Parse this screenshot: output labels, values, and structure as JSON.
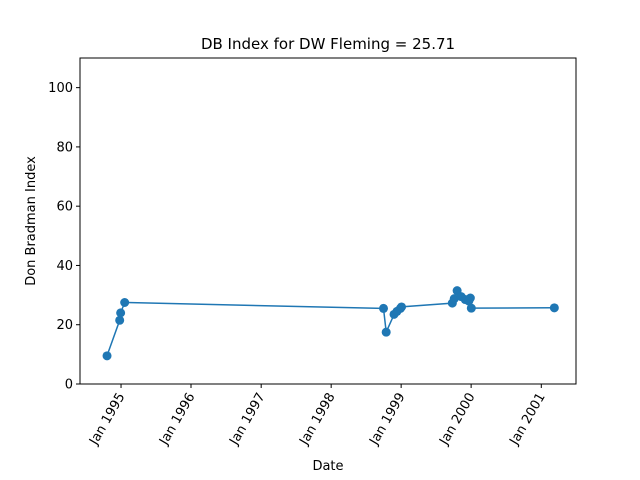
{
  "chart_data": {
    "type": "line",
    "title": "DB Index for DW Fleming = 25.71",
    "xlabel": "Date",
    "ylabel": "Don Bradman Index",
    "ylim": [
      0,
      110
    ],
    "yticks": [
      0,
      20,
      40,
      60,
      80,
      100
    ],
    "xlim": [
      "1994-06-01",
      "2001-07-01"
    ],
    "xticks": [
      {
        "date": "1995-01-01",
        "label": "Jan 1995"
      },
      {
        "date": "1996-01-01",
        "label": "Jan 1996"
      },
      {
        "date": "1997-01-01",
        "label": "Jan 1997"
      },
      {
        "date": "1998-01-01",
        "label": "Jan 1998"
      },
      {
        "date": "1999-01-01",
        "label": "Jan 1999"
      },
      {
        "date": "2000-01-01",
        "label": "Jan 2000"
      },
      {
        "date": "2001-01-01",
        "label": "Jan 2001"
      }
    ],
    "grid": false,
    "series": [
      {
        "color": "#1f77b4",
        "x": [
          "1994-10-20",
          "1994-12-25",
          "1994-12-30",
          "1995-01-20",
          "1998-10-01",
          "1998-10-15",
          "1998-11-25",
          "1998-12-10",
          "1998-12-28",
          "1999-01-03",
          "1999-09-25",
          "1999-10-05",
          "1999-10-20",
          "1999-11-10",
          "1999-12-01",
          "1999-12-20",
          "1999-12-28",
          "2000-01-02",
          "2001-03-10"
        ],
        "y": [
          9.5,
          21.5,
          24.0,
          27.5,
          25.5,
          17.5,
          23.5,
          24.5,
          25.5,
          26.0,
          27.3,
          28.8,
          31.5,
          29.5,
          28.5,
          28.0,
          29.0,
          25.6,
          25.7
        ]
      }
    ]
  }
}
